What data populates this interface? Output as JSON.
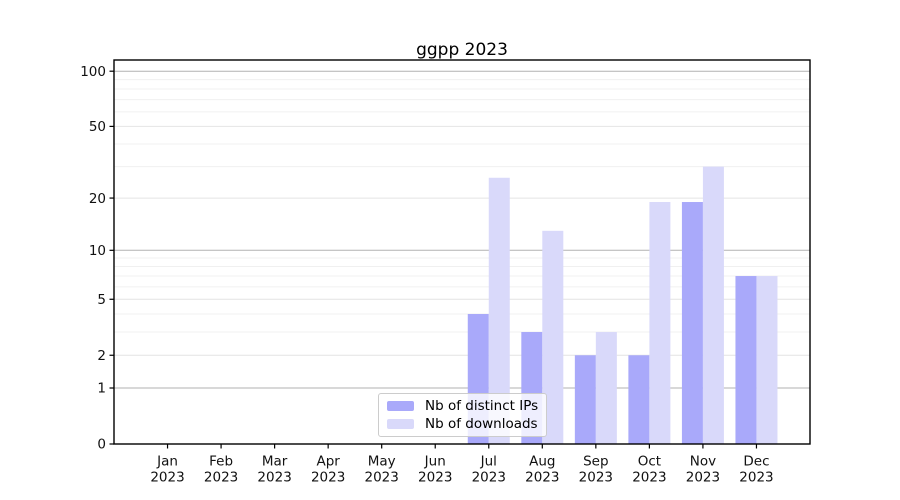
{
  "figure": {
    "title": "ggpp 2023"
  },
  "chart_data": {
    "type": "bar",
    "title": "ggpp 2023",
    "year": "2023",
    "categories": [
      "Jan",
      "Feb",
      "Mar",
      "Apr",
      "May",
      "Jun",
      "Jul",
      "Aug",
      "Sep",
      "Oct",
      "Nov",
      "Dec"
    ],
    "series": [
      {
        "name": "Nb of distinct IPs",
        "color": "#a9a9fa",
        "values": [
          0,
          0,
          0,
          0,
          0,
          0,
          4,
          3,
          2,
          2,
          19,
          7
        ]
      },
      {
        "name": "Nb of downloads",
        "color": "#d9d9fa",
        "values": [
          0,
          0,
          0,
          0,
          0,
          0,
          26,
          13,
          3,
          19,
          30,
          7
        ]
      }
    ],
    "xlabel": "",
    "ylabel": "",
    "y_axis": {
      "scale": "log1p",
      "range": [
        0,
        100
      ],
      "tick_values": [
        0,
        1,
        2,
        5,
        10,
        20,
        50,
        100
      ],
      "tick_labels": [
        "0",
        "1",
        "2",
        "5",
        "10",
        "20",
        "50",
        "100"
      ]
    },
    "grid": {
      "on": true,
      "decade_lines": [
        1,
        10,
        100
      ],
      "mid_lines": [
        2,
        5,
        20,
        50
      ],
      "minor_lines": [
        3,
        4,
        6,
        7,
        8,
        9,
        30,
        40,
        60,
        70,
        80,
        90
      ],
      "decade_color": "#b2b2b2",
      "mid_color": "#e4e4e4",
      "minor_color": "#f0f0f0"
    },
    "legend": {
      "position": "bottom-center"
    },
    "colors": {
      "axis": "#000000",
      "tick_text": "#111111"
    }
  }
}
